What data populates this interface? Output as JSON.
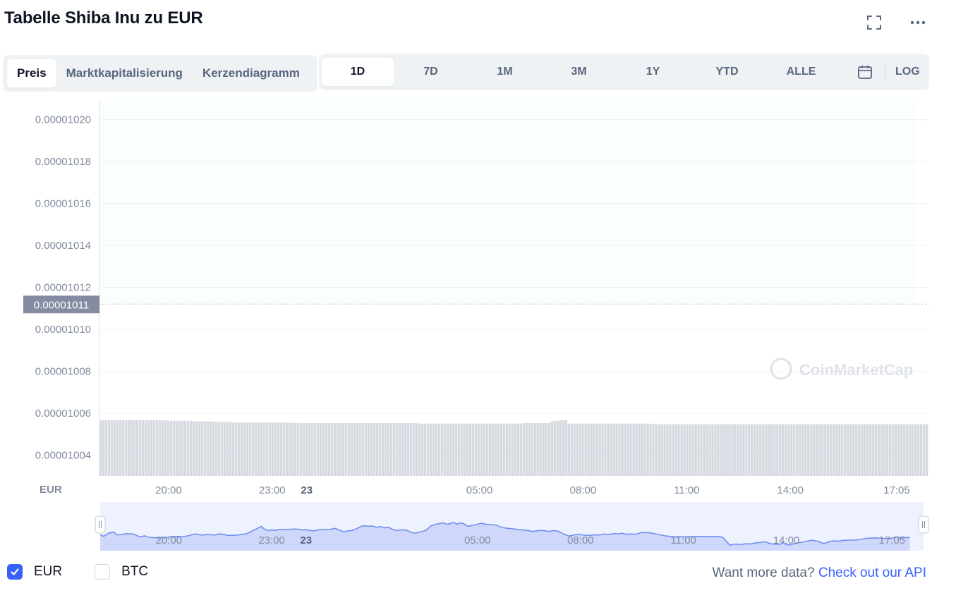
{
  "title": "Tabelle Shiba Inu zu EUR",
  "icons": {
    "fullscreen": "fullscreen-icon",
    "more": "more-icon",
    "calendar": "calendar-icon",
    "check": "check-icon"
  },
  "tabs_left": [
    {
      "label": "Preis",
      "active": true
    },
    {
      "label": "Marktkapitalisierung",
      "active": false
    },
    {
      "label": "Kerzendiagramm",
      "active": false
    }
  ],
  "tabs_right": [
    {
      "label": "1D",
      "active": true
    },
    {
      "label": "7D",
      "active": false
    },
    {
      "label": "1M",
      "active": false
    },
    {
      "label": "3M",
      "active": false
    },
    {
      "label": "1Y",
      "active": false
    },
    {
      "label": "YTD",
      "active": false
    },
    {
      "label": "ALLE",
      "active": false
    }
  ],
  "log_label": "LOG",
  "colors": {
    "up": "#16c784",
    "down": "#ea3943",
    "accent": "#3861fb",
    "navigator": "#6c8bef"
  },
  "chart_data": {
    "type": "line",
    "currency_label": "EUR",
    "y_ticks": [
      "0.00001020",
      "0.00001018",
      "0.00001016",
      "0.00001014",
      "0.00001012",
      "0.00001010",
      "0.00001008",
      "0.00001006",
      "0.00001004"
    ],
    "ylim": [
      1.003e-05,
      1.021e-05
    ],
    "reference_value": 1.0112e-05,
    "reference_label": "0.00001011",
    "x_ticks": [
      {
        "label": "20:00",
        "h": 2,
        "bold": false
      },
      {
        "label": "23:00",
        "h": 5,
        "bold": false
      },
      {
        "label": "23",
        "h": 6,
        "bold": true
      },
      {
        "label": "05:00",
        "h": 11,
        "bold": false
      },
      {
        "label": "08:00",
        "h": 14,
        "bold": false
      },
      {
        "label": "11:00",
        "h": 17,
        "bold": false
      },
      {
        "label": "14:00",
        "h": 20,
        "bold": false
      },
      {
        "label": "17:05",
        "h": 23.08,
        "bold": false
      }
    ],
    "xlim_hours": [
      0,
      24
    ],
    "watermark": "CoinMarketCap",
    "series": [
      {
        "values": [
          [
            0.0,
            10.12
          ],
          [
            0.1,
            10.11
          ],
          [
            0.25,
            10.13
          ],
          [
            0.4,
            10.135
          ],
          [
            0.5,
            10.118
          ],
          [
            0.65,
            10.122
          ],
          [
            0.75,
            10.126
          ],
          [
            0.95,
            10.125
          ],
          [
            1.05,
            10.116
          ],
          [
            1.15,
            10.107
          ],
          [
            1.3,
            10.113
          ],
          [
            1.4,
            10.105
          ],
          [
            1.55,
            10.102
          ],
          [
            1.7,
            10.099
          ],
          [
            1.8,
            10.104
          ],
          [
            1.9,
            10.1
          ],
          [
            2.05,
            10.108
          ],
          [
            2.2,
            10.109
          ],
          [
            2.4,
            10.108
          ],
          [
            2.55,
            10.112
          ],
          [
            2.7,
            10.122
          ],
          [
            2.8,
            10.124
          ],
          [
            2.9,
            10.119
          ],
          [
            3.0,
            10.117
          ],
          [
            3.1,
            10.121
          ],
          [
            3.2,
            10.119
          ],
          [
            3.35,
            10.118
          ],
          [
            3.45,
            10.125
          ],
          [
            3.6,
            10.122
          ],
          [
            3.7,
            10.115
          ],
          [
            3.85,
            10.116
          ],
          [
            3.95,
            10.117
          ],
          [
            4.05,
            10.119
          ],
          [
            4.15,
            10.123
          ],
          [
            4.25,
            10.124
          ],
          [
            4.35,
            10.135
          ],
          [
            4.55,
            10.155
          ],
          [
            4.7,
            10.171
          ],
          [
            4.8,
            10.152
          ],
          [
            4.9,
            10.146
          ],
          [
            5.0,
            10.149
          ],
          [
            5.1,
            10.146
          ],
          [
            5.2,
            10.152
          ],
          [
            5.3,
            10.151
          ],
          [
            5.4,
            10.153
          ],
          [
            5.5,
            10.153
          ],
          [
            5.6,
            10.154
          ],
          [
            5.7,
            10.155
          ],
          [
            5.8,
            10.152
          ],
          [
            5.9,
            10.148
          ],
          [
            6.0,
            10.15
          ],
          [
            6.1,
            10.147
          ],
          [
            6.2,
            10.143
          ],
          [
            6.3,
            10.147
          ],
          [
            6.4,
            10.152
          ],
          [
            6.5,
            10.151
          ],
          [
            6.7,
            10.153
          ],
          [
            6.85,
            10.159
          ],
          [
            7.0,
            10.146
          ],
          [
            7.1,
            10.138
          ],
          [
            7.2,
            10.143
          ],
          [
            7.35,
            10.146
          ],
          [
            7.5,
            10.16
          ],
          [
            7.65,
            10.175
          ],
          [
            7.8,
            10.172
          ],
          [
            7.95,
            10.173
          ],
          [
            8.05,
            10.165
          ],
          [
            8.15,
            10.17
          ],
          [
            8.3,
            10.162
          ],
          [
            8.4,
            10.166
          ],
          [
            8.55,
            10.15
          ],
          [
            8.65,
            10.146
          ],
          [
            8.75,
            10.149
          ],
          [
            8.85,
            10.15
          ],
          [
            8.95,
            10.146
          ],
          [
            9.1,
            10.132
          ],
          [
            9.2,
            10.13
          ],
          [
            9.35,
            10.137
          ],
          [
            9.5,
            10.148
          ],
          [
            9.65,
            10.175
          ],
          [
            9.8,
            10.185
          ],
          [
            9.9,
            10.189
          ],
          [
            10.0,
            10.193
          ],
          [
            10.1,
            10.184
          ],
          [
            10.2,
            10.188
          ],
          [
            10.3,
            10.195
          ],
          [
            10.4,
            10.185
          ],
          [
            10.5,
            10.192
          ],
          [
            10.6,
            10.188
          ],
          [
            10.7,
            10.172
          ],
          [
            10.8,
            10.175
          ],
          [
            10.95,
            10.181
          ],
          [
            11.1,
            10.19
          ],
          [
            11.25,
            10.184
          ],
          [
            11.4,
            10.182
          ],
          [
            11.55,
            10.179
          ],
          [
            11.7,
            10.165
          ],
          [
            11.85,
            10.16
          ],
          [
            12.0,
            10.157
          ],
          [
            12.2,
            10.151
          ],
          [
            12.35,
            10.148
          ],
          [
            12.5,
            10.145
          ],
          [
            12.6,
            10.14
          ],
          [
            12.7,
            10.143
          ],
          [
            12.85,
            10.146
          ],
          [
            13.0,
            10.143
          ],
          [
            13.1,
            10.14
          ],
          [
            13.2,
            10.145
          ],
          [
            13.35,
            10.142
          ],
          [
            13.5,
            10.125
          ],
          [
            13.65,
            10.112
          ],
          [
            13.75,
            10.115
          ],
          [
            13.85,
            10.12
          ],
          [
            13.95,
            10.122
          ],
          [
            14.1,
            10.117
          ],
          [
            14.2,
            10.116
          ],
          [
            14.35,
            10.118
          ],
          [
            14.5,
            10.118
          ],
          [
            14.6,
            10.12
          ],
          [
            14.7,
            10.124
          ],
          [
            14.8,
            10.121
          ],
          [
            14.9,
            10.124
          ],
          [
            15.0,
            10.127
          ],
          [
            15.1,
            10.125
          ],
          [
            15.2,
            10.129
          ],
          [
            15.3,
            10.124
          ],
          [
            15.4,
            10.123
          ],
          [
            15.5,
            10.124
          ],
          [
            15.6,
            10.122
          ],
          [
            15.7,
            10.128
          ],
          [
            15.8,
            10.134
          ],
          [
            15.9,
            10.132
          ],
          [
            16.0,
            10.132
          ],
          [
            16.15,
            10.127
          ],
          [
            16.3,
            10.12
          ],
          [
            16.45,
            10.113
          ],
          [
            16.6,
            10.11
          ],
          [
            16.75,
            10.106
          ],
          [
            16.85,
            10.108
          ],
          [
            17.0,
            10.107
          ],
          [
            17.2,
            10.108
          ],
          [
            17.4,
            10.108
          ],
          [
            17.55,
            10.11
          ],
          [
            17.65,
            10.109
          ],
          [
            17.8,
            10.108
          ],
          [
            17.95,
            10.11
          ],
          [
            18.05,
            10.108
          ],
          [
            18.15,
            10.103
          ],
          [
            18.25,
            10.08
          ],
          [
            18.35,
            10.056
          ],
          [
            18.5,
            10.062
          ],
          [
            18.65,
            10.06
          ],
          [
            18.8,
            10.064
          ],
          [
            18.95,
            10.063
          ],
          [
            19.1,
            10.069
          ],
          [
            19.25,
            10.073
          ],
          [
            19.4,
            10.076
          ],
          [
            19.5,
            10.067
          ],
          [
            19.6,
            10.062
          ],
          [
            19.7,
            10.062
          ],
          [
            19.8,
            10.06
          ],
          [
            19.9,
            10.072
          ],
          [
            20.0,
            10.059
          ],
          [
            20.1,
            10.056
          ],
          [
            20.2,
            10.063
          ],
          [
            20.35,
            10.07
          ],
          [
            20.5,
            10.075
          ],
          [
            20.65,
            10.082
          ],
          [
            20.75,
            10.086
          ],
          [
            20.85,
            10.082
          ],
          [
            20.95,
            10.078
          ],
          [
            21.05,
            10.067
          ],
          [
            21.15,
            10.068
          ],
          [
            21.25,
            10.078
          ],
          [
            21.4,
            10.082
          ],
          [
            21.55,
            10.08
          ],
          [
            21.65,
            10.085
          ],
          [
            21.75,
            10.086
          ],
          [
            21.9,
            10.087
          ],
          [
            22.05,
            10.087
          ],
          [
            22.2,
            10.092
          ],
          [
            22.3,
            10.097
          ],
          [
            22.45,
            10.099
          ],
          [
            22.6,
            10.1
          ],
          [
            22.75,
            10.099
          ],
          [
            22.9,
            10.096
          ],
          [
            23.05,
            10.096
          ],
          [
            23.2,
            10.107
          ],
          [
            23.35,
            10.1
          ],
          [
            23.5,
            10.102
          ],
          [
            23.6,
            10.102
          ]
        ]
      }
    ],
    "volume_pct": [
      100,
      100,
      100,
      100,
      100,
      100,
      100,
      100,
      100,
      100,
      100,
      100,
      100,
      100,
      100,
      100,
      100,
      100,
      100,
      100,
      100,
      100,
      100,
      100,
      99,
      99,
      99,
      99,
      99,
      99,
      99,
      99,
      99,
      98,
      98,
      98,
      98,
      98,
      98,
      98,
      97,
      97,
      97,
      97,
      97,
      97,
      97,
      96,
      96,
      96,
      96,
      96,
      96,
      96,
      96,
      96,
      96,
      96,
      96,
      96,
      96,
      96,
      96,
      96,
      96,
      96,
      96,
      96,
      95,
      95,
      95,
      95,
      95,
      95,
      95,
      95,
      95,
      95,
      95,
      95,
      95,
      95,
      95,
      95,
      95,
      95,
      95,
      95,
      95,
      95,
      95,
      95,
      95,
      95,
      95,
      95,
      95,
      95,
      95,
      95,
      95,
      95,
      95,
      95,
      95,
      95,
      95,
      95,
      95,
      95,
      95,
      95,
      95,
      94,
      94,
      94,
      94,
      94,
      94,
      94,
      94,
      94,
      94,
      94,
      94,
      94,
      94,
      94,
      94,
      94,
      94,
      94,
      94,
      94,
      94,
      94,
      94,
      94,
      94,
      94,
      94,
      94,
      94,
      94,
      94,
      94,
      94,
      94,
      94,
      94,
      95,
      95,
      95,
      95,
      95,
      95,
      95,
      95,
      95,
      95,
      98,
      99,
      99,
      100,
      100,
      100,
      94,
      94,
      94,
      94,
      94,
      94,
      94,
      94,
      94,
      94,
      94,
      94,
      94,
      94,
      94,
      94,
      94,
      94,
      94,
      94,
      94,
      94,
      94,
      94,
      94,
      94,
      94,
      94,
      94,
      94,
      93,
      93,
      93,
      93,
      93,
      93,
      93,
      93,
      93,
      93,
      93,
      93,
      93,
      93,
      93,
      93,
      93,
      93,
      93,
      93,
      93,
      93,
      93,
      93,
      93,
      93,
      93,
      93,
      93,
      93,
      93,
      93,
      93,
      93,
      93,
      93,
      93,
      93,
      93,
      93,
      93,
      93,
      93,
      93,
      93,
      93,
      93,
      93,
      93,
      93,
      93,
      93,
      93,
      93,
      93,
      93,
      93,
      93,
      93,
      93,
      93,
      93,
      93,
      93,
      93,
      93,
      93,
      93,
      93,
      93,
      93,
      93,
      93,
      93,
      93,
      93,
      93,
      93,
      93,
      93,
      93,
      93,
      93,
      93,
      93,
      93,
      93,
      93,
      93,
      93,
      93,
      93,
      93,
      93,
      93,
      93,
      93,
      93
    ]
  },
  "legend": [
    {
      "label": "EUR",
      "checked": true
    },
    {
      "label": "BTC",
      "checked": false
    }
  ],
  "api_text": "Want more data?",
  "api_link": "Check out our API"
}
